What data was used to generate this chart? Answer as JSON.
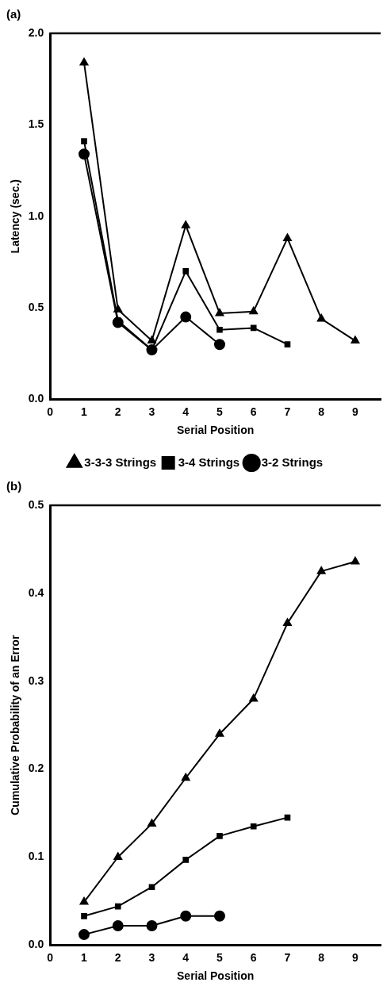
{
  "chart_data": [
    {
      "type": "line",
      "title": "(a)",
      "xlabel": "Serial Position",
      "ylabel": "Latency (sec.)",
      "xlim": [
        0,
        9.75
      ],
      "xticks": [
        0,
        1,
        2,
        3,
        4,
        5,
        6,
        7,
        8,
        9
      ],
      "ylim": [
        0,
        2
      ],
      "yticks": [
        {
          "value": 0,
          "label": "0.0"
        },
        {
          "value": 0.5,
          "label": "0.5"
        },
        {
          "value": 1,
          "label": "1.0"
        },
        {
          "value": 1.5,
          "label": "1.5"
        },
        {
          "value": 2,
          "label": "2.0"
        }
      ],
      "grid": false,
      "legend": false,
      "line_style": "solid",
      "series": [
        {
          "color": "#000000",
          "marker": "triangle",
          "x": [
            1,
            2,
            3,
            4,
            5,
            6,
            7,
            8,
            9
          ],
          "values": [
            1.84,
            0.49,
            0.32,
            0.95,
            0.47,
            0.48,
            0.88,
            0.44,
            0.32
          ]
        },
        {
          "color": "#000000",
          "marker": "square",
          "x": [
            1,
            2,
            3,
            4,
            5,
            6,
            7
          ],
          "values": [
            1.41,
            0.43,
            0.27,
            0.7,
            0.38,
            0.39,
            0.3
          ]
        },
        {
          "color": "#000000",
          "marker": "circle",
          "x": [
            1,
            2,
            3,
            4,
            5
          ],
          "values": [
            1.34,
            0.42,
            0.27,
            0.45,
            0.3
          ]
        }
      ]
    },
    {
      "type": "line",
      "title": "(b)",
      "xlabel": "Serial Position",
      "ylabel": "Cumulative Probability of an Error",
      "xlim": [
        0,
        9.75
      ],
      "xticks": [
        0,
        1,
        2,
        3,
        4,
        5,
        6,
        7,
        8,
        9
      ],
      "ylim": [
        0,
        0.5
      ],
      "yticks": [
        {
          "value": 0,
          "label": "0.0"
        },
        {
          "value": 0.1,
          "label": "0.1"
        },
        {
          "value": 0.2,
          "label": "0.2"
        },
        {
          "value": 0.3,
          "label": "0.3"
        },
        {
          "value": 0.4,
          "label": "0.4"
        },
        {
          "value": 0.5,
          "label": "0.5"
        }
      ],
      "grid": false,
      "legend": "top",
      "line_style": "solid",
      "series": [
        {
          "name": "3-3-3 Strings",
          "color": "#000000",
          "marker": "triangle",
          "x": [
            1,
            2,
            3,
            4,
            5,
            6,
            7,
            8,
            9
          ],
          "values": [
            0.049,
            0.1,
            0.138,
            0.19,
            0.24,
            0.28,
            0.366,
            0.425,
            0.436
          ]
        },
        {
          "name": "3-4 Strings",
          "color": "#000000",
          "marker": "square",
          "x": [
            1,
            2,
            3,
            4,
            5,
            6,
            7
          ],
          "values": [
            0.033,
            0.044,
            0.066,
            0.097,
            0.124,
            0.135,
            0.145
          ]
        },
        {
          "name": "3-2 Strings",
          "color": "#000000",
          "marker": "circle",
          "x": [
            1,
            2,
            3,
            4,
            5
          ],
          "values": [
            0.012,
            0.022,
            0.022,
            0.033,
            0.033
          ]
        }
      ]
    }
  ]
}
